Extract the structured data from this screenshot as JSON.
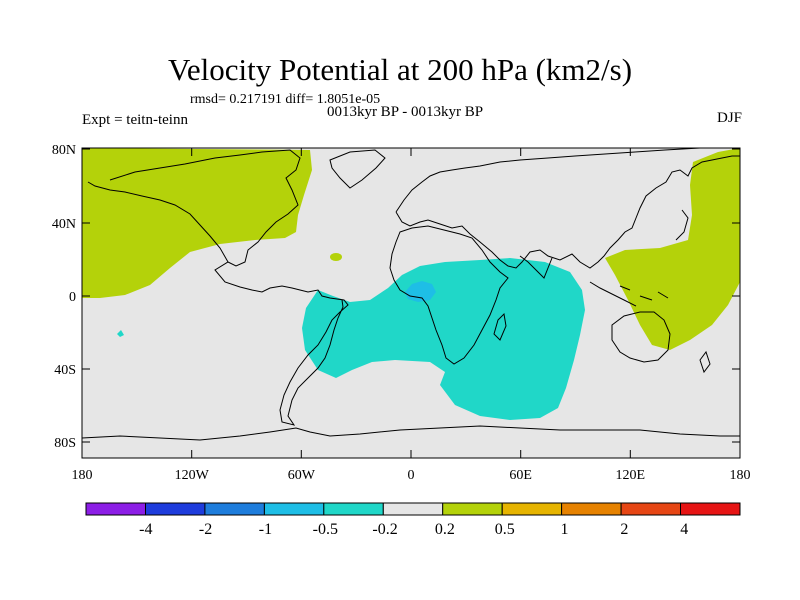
{
  "title": "Velocity Potential at 200 hPa (km2/s)",
  "stats_line": "rmsd= 0.217191 diff= 1.8051e-05",
  "experiment": "Expt = teitn-teinn",
  "period": "0013kyr BP - 0013kyr BP",
  "season": "DJF",
  "axes": {
    "lon_labels": [
      "180",
      "120W",
      "60W",
      "0",
      "60E",
      "120E",
      "180"
    ],
    "lat_labels": [
      "80N",
      "40N",
      "0",
      "40S",
      "80S"
    ]
  },
  "colorbar": {
    "levels": [
      "-4",
      "-2",
      "-1",
      "-0.5",
      "-0.2",
      "0.2",
      "0.5",
      "1",
      "2",
      "4"
    ],
    "colors": [
      "#8c1ee6",
      "#1e3cdc",
      "#1e7ddc",
      "#1ebee6",
      "#20d7c8",
      "#e6e6e6",
      "#b4d20a",
      "#e6b400",
      "#e68200",
      "#e64614",
      "#e61414"
    ]
  },
  "colors": {
    "neutral": "#e6e6e6",
    "positive": "#b4d20a",
    "negative": "#20d7c8",
    "negative_strong": "#1ebee6"
  }
}
